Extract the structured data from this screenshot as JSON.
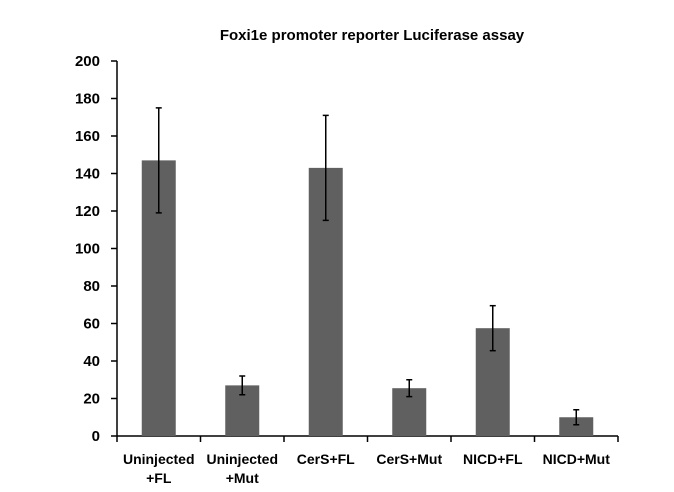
{
  "chart_data": {
    "type": "bar",
    "title": "Foxi1e promoter reporter Luciferase assay",
    "xlabel": "",
    "ylabel": "",
    "categories": [
      [
        "Uninjected",
        "+FL"
      ],
      [
        "Uninjected",
        "+Mut"
      ],
      [
        "CerS+FL"
      ],
      [
        "CerS+Mut"
      ],
      [
        "NICD+FL"
      ],
      [
        "NICD+Mut"
      ]
    ],
    "values": [
      147,
      27,
      143,
      25.5,
      57.5,
      10
    ],
    "error": [
      28,
      5,
      28,
      4.5,
      12,
      4
    ],
    "ylim": [
      0,
      200
    ],
    "yticks": [
      "0",
      "20",
      "40",
      "60",
      "80",
      "100",
      "120",
      "140",
      "160",
      "180",
      "200"
    ],
    "grid": false,
    "legend": false,
    "colors": {
      "bar": "#606060",
      "axis": "#000000",
      "error": "#000000"
    }
  }
}
